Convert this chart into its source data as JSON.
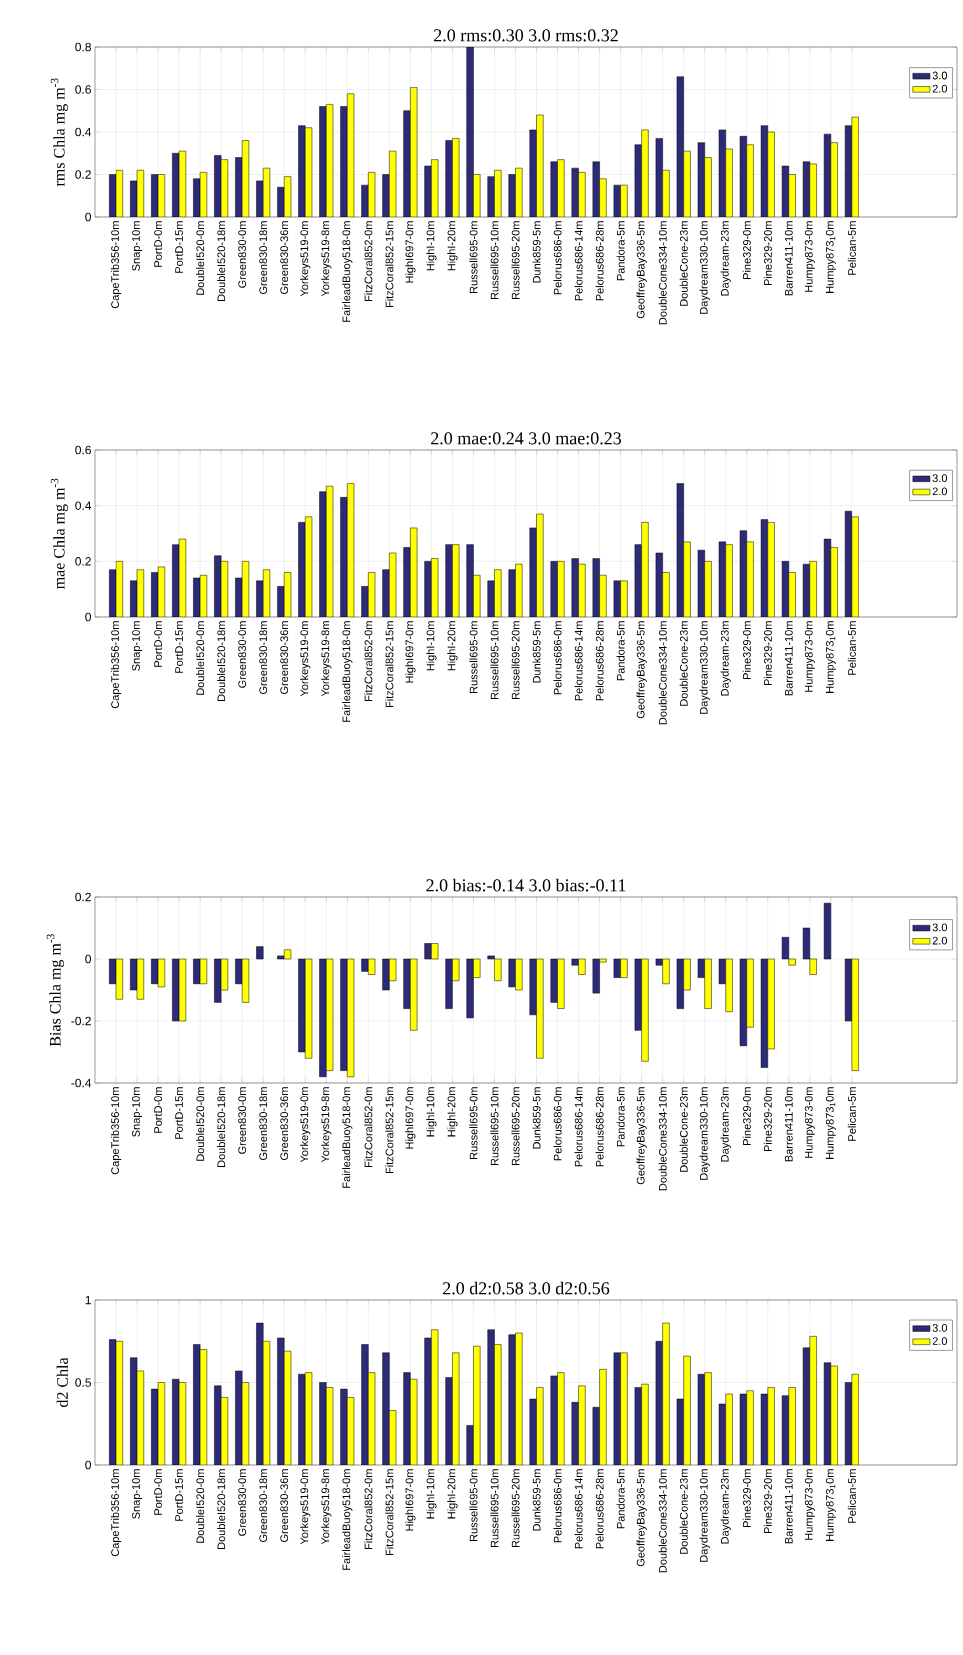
{
  "chart_data": [
    {
      "type": "bar",
      "title": "2.0 rms:0.30 3.0 rms:0.32",
      "ylabel": "rms Chla mg m$^{-3}$",
      "categories": [
        "CapeTrib356-10m",
        "Snap-10m",
        "PortD-0m",
        "PortD-15m",
        "DoubleI520-0m",
        "DoubleI520-18m",
        "Green830-0m",
        "Green830-18m",
        "Green830-36m",
        "Yorkeys519-0m",
        "Yorkeys519-8m",
        "FairleadBuoy518-0m",
        "FitzCoral852-0m",
        "FitzCoral852-15m",
        "HighI697-0m",
        "HighI-10m",
        "HighI-20m",
        "Russell695-0m",
        "Russell695-10m",
        "Russell695-20m",
        "Dunk859-5m",
        "Pelorus686-0m",
        "Pelorus686-14m",
        "Pelorus686-28m",
        "Pandora-5m",
        "GeoffreyBay336-5m",
        "DoubleCone334-10m",
        "DoubleCone-23m",
        "Daydream330-10m",
        "Daydream-23m",
        "Pine329-0m",
        "Pine329-20m",
        "Barren411-10m",
        "Humpy873-0m",
        "Humpy873$_{1}$0m",
        "Pelican-5m"
      ],
      "series": [
        {
          "name": "3.0",
          "color": "#2e2a7a",
          "values": [
            0.2,
            0.17,
            0.2,
            0.3,
            0.18,
            0.29,
            0.28,
            0.17,
            0.14,
            0.43,
            0.52,
            0.52,
            0.15,
            0.2,
            0.5,
            0.24,
            0.36,
            0.8,
            0.19,
            0.2,
            0.41,
            0.26,
            0.23,
            0.26,
            0.15,
            0.34,
            0.37,
            0.66,
            0.35,
            0.41,
            0.38,
            0.43,
            0.24,
            0.26,
            0.39,
            0.43
          ]
        },
        {
          "name": "2.0",
          "color": "#ffff00",
          "values": [
            0.22,
            0.22,
            0.2,
            0.31,
            0.21,
            0.27,
            0.36,
            0.23,
            0.19,
            0.42,
            0.53,
            0.58,
            0.21,
            0.31,
            0.61,
            0.27,
            0.37,
            0.2,
            0.22,
            0.23,
            0.48,
            0.27,
            0.21,
            0.18,
            0.15,
            0.41,
            0.22,
            0.31,
            0.28,
            0.32,
            0.34,
            0.4,
            0.2,
            0.25,
            0.35,
            0.47
          ]
        }
      ],
      "ylim": [
        0,
        0.8
      ],
      "yticks": [
        0,
        0.2,
        0.4,
        0.6,
        0.8
      ],
      "grid": true,
      "legend": "top right"
    },
    {
      "type": "bar",
      "title": "2.0 mae:0.24 3.0 mae:0.23",
      "ylabel": "mae Chla mg m$^{-3}$",
      "categories": [
        "CapeTrib356-10m",
        "Snap-10m",
        "PortD-0m",
        "PortD-15m",
        "DoubleI520-0m",
        "DoubleI520-18m",
        "Green830-0m",
        "Green830-18m",
        "Green830-36m",
        "Yorkeys519-0m",
        "Yorkeys519-8m",
        "FairleadBuoy518-0m",
        "FitzCoral852-0m",
        "FitzCoral852-15m",
        "HighI697-0m",
        "HighI-10m",
        "HighI-20m",
        "Russell695-0m",
        "Russell695-10m",
        "Russell695-20m",
        "Dunk859-5m",
        "Pelorus686-0m",
        "Pelorus686-14m",
        "Pelorus686-28m",
        "Pandora-5m",
        "GeoffreyBay336-5m",
        "DoubleCone334-10m",
        "DoubleCone-23m",
        "Daydream330-10m",
        "Daydream-23m",
        "Pine329-0m",
        "Pine329-20m",
        "Barren411-10m",
        "Humpy873-0m",
        "Humpy873$_{1}$0m",
        "Pelican-5m"
      ],
      "series": [
        {
          "name": "3.0",
          "color": "#2e2a7a",
          "values": [
            0.17,
            0.13,
            0.16,
            0.26,
            0.14,
            0.22,
            0.14,
            0.13,
            0.11,
            0.34,
            0.45,
            0.43,
            0.11,
            0.17,
            0.25,
            0.2,
            0.26,
            0.26,
            0.13,
            0.17,
            0.32,
            0.2,
            0.21,
            0.21,
            0.13,
            0.26,
            0.23,
            0.48,
            0.24,
            0.27,
            0.31,
            0.35,
            0.2,
            0.19,
            0.28,
            0.38
          ]
        },
        {
          "name": "2.0",
          "color": "#ffff00",
          "values": [
            0.2,
            0.17,
            0.18,
            0.28,
            0.15,
            0.2,
            0.2,
            0.17,
            0.16,
            0.36,
            0.47,
            0.48,
            0.16,
            0.23,
            0.32,
            0.21,
            0.26,
            0.15,
            0.17,
            0.19,
            0.37,
            0.2,
            0.19,
            0.15,
            0.13,
            0.34,
            0.16,
            0.27,
            0.2,
            0.26,
            0.27,
            0.34,
            0.16,
            0.2,
            0.25,
            0.36
          ]
        }
      ],
      "ylim": [
        0,
        0.6
      ],
      "yticks": [
        0,
        0.2,
        0.4,
        0.6
      ],
      "grid": true,
      "legend": "top right"
    },
    {
      "type": "bar",
      "title": "2.0 bias:-0.14 3.0 bias:-0.11",
      "ylabel": "Bias Chla mg m$^{-3}$",
      "categories": [
        "CapeTrib356-10m",
        "Snap-10m",
        "PortD-0m",
        "PortD-15m",
        "DoubleI520-0m",
        "DoubleI520-18m",
        "Green830-0m",
        "Green830-18m",
        "Green830-36m",
        "Yorkeys519-0m",
        "Yorkeys519-8m",
        "FairleadBuoy518-0m",
        "FitzCoral852-0m",
        "FitzCoral852-15m",
        "HighI697-0m",
        "HighI-10m",
        "HighI-20m",
        "Russell695-0m",
        "Russell695-10m",
        "Russell695-20m",
        "Dunk859-5m",
        "Pelorus686-0m",
        "Pelorus686-14m",
        "Pelorus686-28m",
        "Pandora-5m",
        "GeoffreyBay336-5m",
        "DoubleCone334-10m",
        "DoubleCone-23m",
        "Daydream330-10m",
        "Daydream-23m",
        "Pine329-0m",
        "Pine329-20m",
        "Barren411-10m",
        "Humpy873-0m",
        "Humpy873$_{1}$0m",
        "Pelican-5m"
      ],
      "series": [
        {
          "name": "3.0",
          "color": "#2e2a7a",
          "values": [
            -0.08,
            -0.1,
            -0.08,
            -0.2,
            -0.08,
            -0.14,
            -0.08,
            0.04,
            0.01,
            -0.3,
            -0.38,
            -0.36,
            -0.04,
            -0.1,
            -0.16,
            0.05,
            -0.16,
            -0.19,
            0.01,
            -0.09,
            -0.18,
            -0.14,
            -0.02,
            -0.11,
            -0.06,
            -0.23,
            -0.02,
            -0.16,
            -0.06,
            -0.08,
            -0.28,
            -0.35,
            0.07,
            0.1,
            0.18,
            -0.2
          ]
        },
        {
          "name": "2.0",
          "color": "#ffff00",
          "values": [
            -0.13,
            -0.13,
            -0.09,
            -0.2,
            -0.08,
            -0.1,
            -0.14,
            null,
            0.03,
            -0.32,
            -0.36,
            -0.38,
            -0.05,
            -0.07,
            -0.23,
            0.05,
            -0.07,
            -0.06,
            -0.07,
            -0.1,
            -0.32,
            -0.16,
            -0.05,
            -0.01,
            -0.06,
            -0.33,
            -0.08,
            -0.1,
            -0.16,
            -0.17,
            -0.22,
            -0.29,
            -0.02,
            -0.05,
            null,
            -0.36
          ]
        }
      ],
      "ylim": [
        -0.4,
        0.2
      ],
      "yticks": [
        -0.4,
        -0.2,
        0,
        0.2
      ],
      "grid": true,
      "legend": "top right"
    },
    {
      "type": "bar",
      "title": "2.0 d2:0.58 3.0 d2:0.56",
      "ylabel": "d2 Chla",
      "categories": [
        "CapeTrib356-10m",
        "Snap-10m",
        "PortD-0m",
        "PortD-15m",
        "DoubleI520-0m",
        "DoubleI520-18m",
        "Green830-0m",
        "Green830-18m",
        "Green830-36m",
        "Yorkeys519-0m",
        "Yorkeys519-8m",
        "FairleadBuoy518-0m",
        "FitzCoral852-0m",
        "FitzCoral852-15m",
        "HighI697-0m",
        "HighI-10m",
        "HighI-20m",
        "Russell695-0m",
        "Russell695-10m",
        "Russell695-20m",
        "Dunk859-5m",
        "Pelorus686-0m",
        "Pelorus686-14m",
        "Pelorus686-28m",
        "Pandora-5m",
        "GeoffreyBay336-5m",
        "DoubleCone334-10m",
        "DoubleCone-23m",
        "Daydream330-10m",
        "Daydream-23m",
        "Pine329-0m",
        "Pine329-20m",
        "Barren411-10m",
        "Humpy873-0m",
        "Humpy873$_{1}$0m",
        "Pelican-5m"
      ],
      "series": [
        {
          "name": "3.0",
          "color": "#2e2a7a",
          "values": [
            0.76,
            0.65,
            0.46,
            0.52,
            0.73,
            0.48,
            0.57,
            0.86,
            0.77,
            0.55,
            0.5,
            0.46,
            0.73,
            0.68,
            0.56,
            0.77,
            0.53,
            0.24,
            0.82,
            0.79,
            0.4,
            0.54,
            0.38,
            0.35,
            0.68,
            0.47,
            0.75,
            0.4,
            0.55,
            0.37,
            0.43,
            0.43,
            0.42,
            0.71,
            0.62,
            0.5
          ]
        },
        {
          "name": "2.0",
          "color": "#ffff00",
          "values": [
            0.75,
            0.57,
            0.5,
            0.5,
            0.7,
            0.41,
            0.5,
            0.75,
            0.69,
            0.56,
            0.47,
            0.41,
            0.56,
            0.33,
            0.52,
            0.82,
            0.68,
            0.72,
            0.73,
            0.8,
            0.47,
            0.56,
            0.48,
            0.58,
            0.68,
            0.49,
            0.86,
            0.66,
            0.56,
            0.43,
            0.45,
            0.47,
            0.47,
            0.78,
            0.6,
            0.55
          ]
        }
      ],
      "ylim": [
        0,
        1
      ],
      "yticks": [
        0,
        0.5,
        1
      ],
      "grid": true,
      "legend": "top right"
    }
  ]
}
